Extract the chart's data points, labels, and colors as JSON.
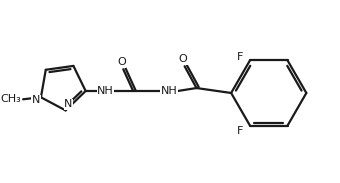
{
  "background_color": "#ffffff",
  "line_color": "#1a1a1a",
  "text_color": "#1a1a1a",
  "line_width": 1.6,
  "font_size": 8.0,
  "figsize": [
    3.4,
    1.83
  ],
  "dpi": 100,
  "F1": "F",
  "F2": "F",
  "O1": "O",
  "O2": "O",
  "NH1": "NH",
  "NH2": "NH",
  "N1": "N",
  "N2": "N",
  "CH3": "CH₃"
}
